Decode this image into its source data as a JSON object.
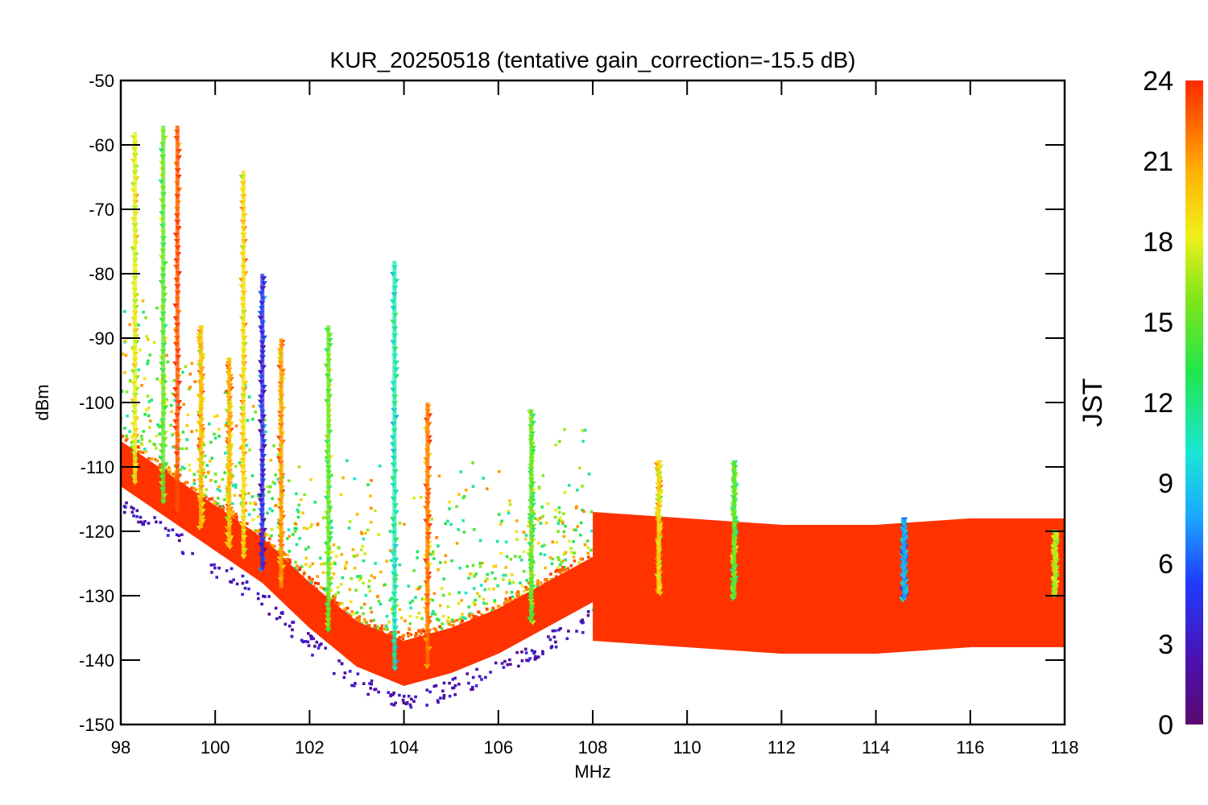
{
  "chart_data": {
    "type": "scatter",
    "title": "KUR_20250518 (tentative gain_correction=-15.5 dB)",
    "xlabel": "MHz",
    "ylabel": "dBm",
    "xlim": [
      98,
      118
    ],
    "ylim": [
      -150,
      -50
    ],
    "x_ticks": [
      "98",
      "100",
      "102",
      "104",
      "106",
      "108",
      "110",
      "112",
      "114",
      "116",
      "118"
    ],
    "y_ticks": [
      "-50",
      "-60",
      "-70",
      "-80",
      "-90",
      "-100",
      "-110",
      "-120",
      "-130",
      "-140",
      "-150"
    ],
    "colorbar": {
      "title": "JST",
      "range": [
        0,
        24
      ],
      "ticks": [
        "24",
        "21",
        "18",
        "15",
        "12",
        "9",
        "6",
        "3",
        "0"
      ],
      "colormap": "rainbow",
      "colors": [
        "#5a0a6e",
        "#4b10b0",
        "#1f3cff",
        "#1aa6ff",
        "#19e6d6",
        "#22e64a",
        "#7fe61a",
        "#f0f01a",
        "#ffb000",
        "#ff6a00",
        "#ff2a00"
      ]
    },
    "noise_floor": [
      {
        "x": 98,
        "y": -111
      },
      {
        "x": 99,
        "y": -116
      },
      {
        "x": 100,
        "y": -121
      },
      {
        "x": 101,
        "y": -126
      },
      {
        "x": 102,
        "y": -133
      },
      {
        "x": 103,
        "y": -139
      },
      {
        "x": 104,
        "y": -142
      },
      {
        "x": 105,
        "y": -140
      },
      {
        "x": 106,
        "y": -137
      },
      {
        "x": 107,
        "y": -133
      },
      {
        "x": 108,
        "y": -129
      },
      {
        "x": 110,
        "y": -130
      },
      {
        "x": 112,
        "y": -131
      },
      {
        "x": 114,
        "y": -131
      },
      {
        "x": 116,
        "y": -130
      },
      {
        "x": 118,
        "y": -130
      }
    ],
    "peaks": [
      {
        "x": 98.3,
        "y": -58,
        "jst": 18
      },
      {
        "x": 98.9,
        "y": -57,
        "jst": 15
      },
      {
        "x": 99.2,
        "y": -57,
        "jst": 23
      },
      {
        "x": 99.7,
        "y": -88,
        "jst": 20
      },
      {
        "x": 100.3,
        "y": -93,
        "jst": 20
      },
      {
        "x": 100.6,
        "y": -64,
        "jst": 19
      },
      {
        "x": 101.0,
        "y": -80,
        "jst": 4
      },
      {
        "x": 101.4,
        "y": -90,
        "jst": 21
      },
      {
        "x": 102.4,
        "y": -88,
        "jst": 15
      },
      {
        "x": 103.8,
        "y": -78,
        "jst": 11
      },
      {
        "x": 104.5,
        "y": -100,
        "jst": 22
      },
      {
        "x": 106.7,
        "y": -101,
        "jst": 15
      },
      {
        "x": 109.4,
        "y": -109,
        "jst": 19
      },
      {
        "x": 111.0,
        "y": -109,
        "jst": 15
      },
      {
        "x": 114.6,
        "y": -118,
        "jst": 8
      },
      {
        "x": 117.8,
        "y": -120,
        "jst": 17
      }
    ]
  }
}
